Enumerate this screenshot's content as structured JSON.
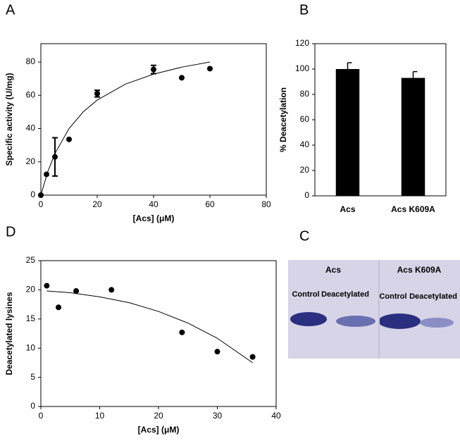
{
  "chart_data": [
    {
      "type": "scatter",
      "panel_label": "A",
      "x_label": "[Acs] (μM)",
      "y_label": "Specific activity (U/mg)",
      "x": [
        0,
        2,
        5,
        10,
        20,
        40,
        50,
        60
      ],
      "values": [
        0,
        12.5,
        23,
        33.5,
        61,
        75.5,
        70.5,
        76
      ],
      "errors": [
        null,
        null,
        11.5,
        null,
        2,
        2.5,
        null,
        null
      ],
      "fit": {
        "x": [
          0,
          2.5,
          5,
          10,
          15,
          20,
          30,
          40,
          50,
          60
        ],
        "values": [
          0,
          14.3,
          25,
          40,
          50,
          57.1,
          66.7,
          72.7,
          76.9,
          80
        ]
      },
      "color": "#000000",
      "xlim": [
        0,
        80
      ],
      "xticks": [
        0,
        20,
        40,
        60,
        80
      ],
      "ylim": [
        0,
        91
      ],
      "yticks": [
        0,
        20,
        40,
        60,
        80
      ]
    },
    {
      "type": "bar",
      "panel_label": "B",
      "y_label": "% Deacetylation",
      "categories": [
        "Acs",
        "Acs K609A"
      ],
      "values": [
        100,
        93
      ],
      "errors": [
        5,
        5
      ],
      "color": "#000000",
      "ylim": [
        0,
        120
      ],
      "yticks": [
        0,
        20,
        40,
        60,
        80,
        100,
        120
      ]
    },
    {
      "type": "scatter",
      "panel_label": "D",
      "x_label": "[Acs] (μM)",
      "y_label": "Deacetylated lysines",
      "x": [
        1,
        3,
        6,
        12,
        24,
        30,
        36
      ],
      "values": [
        20.7,
        17,
        19.8,
        20,
        12.7,
        9.4,
        8.5
      ],
      "fit": {
        "x": [
          1,
          5,
          10,
          15,
          20,
          25,
          30,
          36
        ],
        "values": [
          19.8,
          19.5,
          18.8,
          17.8,
          16.3,
          14.3,
          11.7,
          7.5
        ]
      },
      "color": "#000000",
      "xlim": [
        0,
        40
      ],
      "xticks": [
        0,
        10,
        20,
        30,
        40
      ],
      "ylim": [
        0,
        25
      ],
      "yticks": [
        0,
        5,
        10,
        15,
        20,
        25
      ]
    }
  ],
  "gel": {
    "panel_label": "C",
    "groups": [
      "Acs",
      "Acs K609A"
    ],
    "lanes": [
      "Control",
      "Deacetylated",
      "Control",
      "Deacetylated"
    ]
  }
}
